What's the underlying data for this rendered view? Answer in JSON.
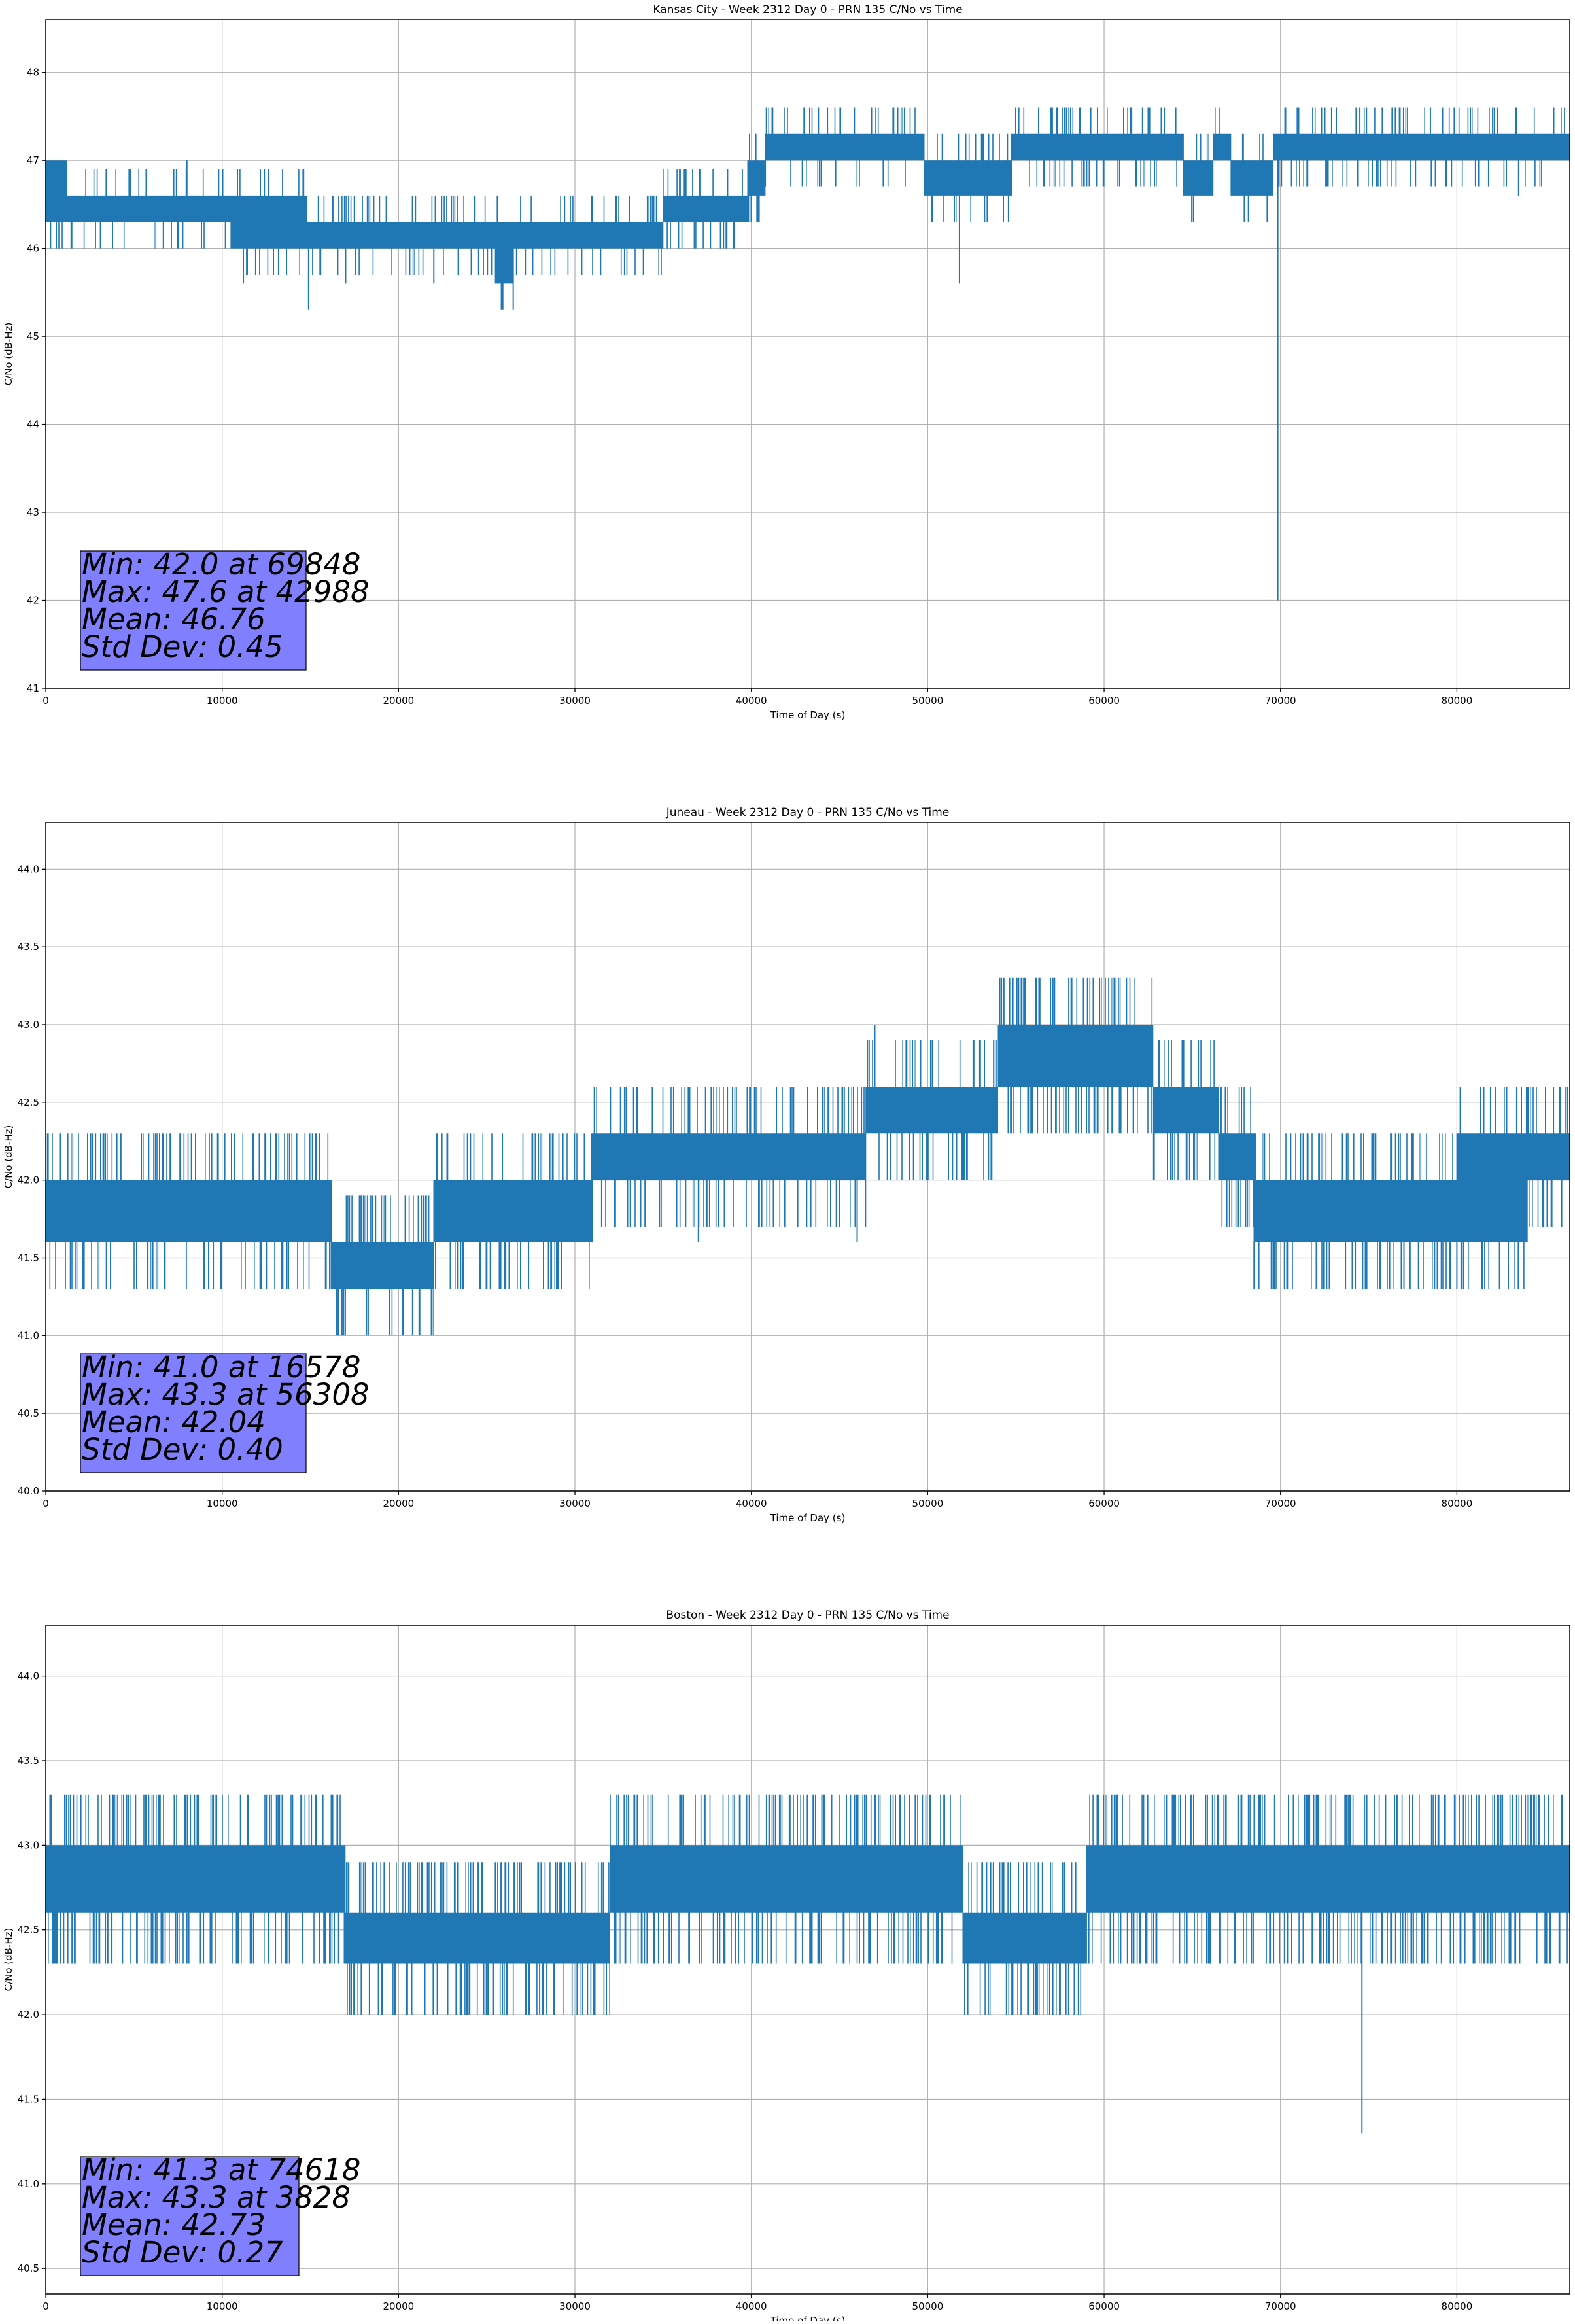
{
  "chart_data": [
    {
      "type": "line",
      "title": "Kansas City - Week 2312 Day 0 - PRN 135 C/No vs Time",
      "xlabel": "Time of Day (s)",
      "ylabel": "C/No (dB-Hz)",
      "xlim": [
        0,
        86400
      ],
      "ylim": [
        41,
        48.6
      ],
      "x_ticks": [
        0,
        10000,
        20000,
        30000,
        40000,
        50000,
        60000,
        70000,
        80000
      ],
      "y_ticks": [
        41,
        42,
        43,
        44,
        45,
        46,
        47,
        48
      ],
      "y_tick_labels": [
        "41",
        "42",
        "43",
        "44",
        "45",
        "46",
        "47",
        "48"
      ],
      "grid": true,
      "series_color": "#1f77b4",
      "stats_box_color": "#8080ff",
      "stats": [
        "Min: 42.0 at 69848",
        "Max: 47.6 at 42988",
        "Mean: 46.76",
        "Std Dev: 0.45"
      ],
      "quantum": 0.3,
      "dense_segments": [
        {
          "x0": 0,
          "x1": 1200,
          "lo": 46.3,
          "hi": 47.0
        },
        {
          "x0": 1200,
          "x1": 3000,
          "lo": 46.3,
          "hi": 46.6
        },
        {
          "x0": 3000,
          "x1": 5500,
          "lo": 46.3,
          "hi": 46.6
        },
        {
          "x0": 5500,
          "x1": 8000,
          "lo": 46.3,
          "hi": 46.6
        },
        {
          "x0": 8000,
          "x1": 10500,
          "lo": 46.3,
          "hi": 46.6
        },
        {
          "x0": 10500,
          "x1": 14800,
          "lo": 46.0,
          "hi": 46.6
        },
        {
          "x0": 14800,
          "x1": 25500,
          "lo": 46.0,
          "hi": 46.3
        },
        {
          "x0": 25500,
          "x1": 26500,
          "lo": 45.6,
          "hi": 46.3
        },
        {
          "x0": 26500,
          "x1": 31000,
          "lo": 46.0,
          "hi": 46.3
        },
        {
          "x0": 31000,
          "x1": 35000,
          "lo": 46.0,
          "hi": 46.3
        },
        {
          "x0": 35000,
          "x1": 39800,
          "lo": 46.3,
          "hi": 46.6
        },
        {
          "x0": 39800,
          "x1": 40800,
          "lo": 46.6,
          "hi": 47.0
        },
        {
          "x0": 40800,
          "x1": 46500,
          "lo": 47.0,
          "hi": 47.3
        },
        {
          "x0": 46500,
          "x1": 49800,
          "lo": 47.0,
          "hi": 47.3
        },
        {
          "x0": 49800,
          "x1": 54800,
          "lo": 46.6,
          "hi": 47.0
        },
        {
          "x0": 54800,
          "x1": 64500,
          "lo": 47.0,
          "hi": 47.3
        },
        {
          "x0": 64500,
          "x1": 66200,
          "lo": 46.6,
          "hi": 47.0
        },
        {
          "x0": 66200,
          "x1": 67200,
          "lo": 47.0,
          "hi": 47.3
        },
        {
          "x0": 67200,
          "x1": 69600,
          "lo": 46.6,
          "hi": 47.0
        },
        {
          "x0": 69600,
          "x1": 86400,
          "lo": 47.0,
          "hi": 47.3
        }
      ],
      "spikes": [
        [
          69848,
          42.0
        ],
        [
          51800,
          45.6
        ],
        [
          14900,
          45.3
        ],
        [
          26500,
          45.3
        ],
        [
          11200,
          45.6
        ],
        [
          17000,
          45.6
        ],
        [
          25500,
          45.6
        ],
        [
          22000,
          45.6
        ],
        [
          8000,
          47.0
        ],
        [
          42988,
          47.6
        ],
        [
          58600,
          47.6
        ],
        [
          61500,
          47.6
        ],
        [
          74500,
          47.6
        ],
        [
          78500,
          47.6
        ],
        [
          83500,
          46.6
        ]
      ],
      "jitter_density": 0.22
    },
    {
      "type": "line",
      "title": "Juneau - Week 2312 Day 0 - PRN 135 C/No vs Time",
      "xlabel": "Time of Day (s)",
      "ylabel": "C/No (dB-Hz)",
      "xlim": [
        0,
        86400
      ],
      "ylim": [
        40.0,
        44.3
      ],
      "x_ticks": [
        0,
        10000,
        20000,
        30000,
        40000,
        50000,
        60000,
        70000,
        80000
      ],
      "y_ticks": [
        40.0,
        40.5,
        41.0,
        41.5,
        42.0,
        42.5,
        43.0,
        43.5,
        44.0
      ],
      "y_tick_labels": [
        "40.0",
        "40.5",
        "41.0",
        "41.5",
        "42.0",
        "42.5",
        "43.0",
        "43.5",
        "44.0"
      ],
      "grid": true,
      "series_color": "#1f77b4",
      "stats_box_color": "#8080ff",
      "stats": [
        "Min: 41.0 at 16578",
        "Max: 43.3 at 56308",
        "Mean: 42.04",
        "Std Dev: 0.40"
      ],
      "quantum": 0.3,
      "dense_segments": [
        {
          "x0": 0,
          "x1": 16200,
          "lo": 41.6,
          "hi": 42.0
        },
        {
          "x0": 16200,
          "x1": 22000,
          "lo": 41.3,
          "hi": 41.6
        },
        {
          "x0": 22000,
          "x1": 31000,
          "lo": 41.6,
          "hi": 42.0
        },
        {
          "x0": 31000,
          "x1": 38000,
          "lo": 42.0,
          "hi": 42.3
        },
        {
          "x0": 38000,
          "x1": 46500,
          "lo": 42.0,
          "hi": 42.3
        },
        {
          "x0": 46500,
          "x1": 54000,
          "lo": 42.3,
          "hi": 42.6
        },
        {
          "x0": 54000,
          "x1": 62800,
          "lo": 42.6,
          "hi": 43.0
        },
        {
          "x0": 62800,
          "x1": 66500,
          "lo": 42.3,
          "hi": 42.6
        },
        {
          "x0": 66500,
          "x1": 68500,
          "lo": 42.0,
          "hi": 42.3
        },
        {
          "x0": 68500,
          "x1": 80000,
          "lo": 41.6,
          "hi": 42.0
        },
        {
          "x0": 80000,
          "x1": 84000,
          "lo": 41.6,
          "hi": 42.3
        },
        {
          "x0": 84000,
          "x1": 86400,
          "lo": 42.0,
          "hi": 42.3
        }
      ],
      "spikes": [
        [
          16578,
          41.0
        ],
        [
          19500,
          41.0
        ],
        [
          56308,
          43.3
        ],
        [
          58000,
          43.3
        ],
        [
          60500,
          43.3
        ],
        [
          47000,
          43.0
        ],
        [
          28500,
          41.3
        ],
        [
          37000,
          41.6
        ],
        [
          46000,
          41.6
        ],
        [
          68500,
          41.3
        ],
        [
          77000,
          41.3
        ],
        [
          80000,
          41.3
        ]
      ],
      "jitter_density": 0.35
    },
    {
      "type": "line",
      "title": "Boston - Week 2312 Day 0 - PRN 135 C/No vs Time",
      "xlabel": "Time of Day (s)",
      "ylabel": "C/No (dB-Hz)",
      "xlim": [
        0,
        86400
      ],
      "ylim": [
        40.35,
        44.3
      ],
      "x_ticks": [
        0,
        10000,
        20000,
        30000,
        40000,
        50000,
        60000,
        70000,
        80000
      ],
      "y_ticks": [
        40.5,
        41.0,
        41.5,
        42.0,
        42.5,
        43.0,
        43.5,
        44.0
      ],
      "y_tick_labels": [
        "40.5",
        "41.0",
        "41.5",
        "42.0",
        "42.5",
        "43.0",
        "43.5",
        "44.0"
      ],
      "grid": true,
      "series_color": "#1f77b4",
      "stats_box_color": "#8080ff",
      "stats": [
        "Min: 41.3 at 74618",
        "Max: 43.3 at 3828",
        "Mean: 42.73",
        "Std Dev: 0.27"
      ],
      "quantum": 0.3,
      "dense_segments": [
        {
          "x0": 0,
          "x1": 17000,
          "lo": 42.6,
          "hi": 43.0
        },
        {
          "x0": 17000,
          "x1": 32000,
          "lo": 42.3,
          "hi": 42.6
        },
        {
          "x0": 32000,
          "x1": 52000,
          "lo": 42.6,
          "hi": 43.0
        },
        {
          "x0": 52000,
          "x1": 59000,
          "lo": 42.3,
          "hi": 42.6
        },
        {
          "x0": 59000,
          "x1": 86400,
          "lo": 42.6,
          "hi": 43.0
        }
      ],
      "spikes": [
        [
          74618,
          41.3
        ],
        [
          3828,
          43.3
        ],
        [
          44000,
          43.3
        ],
        [
          47000,
          43.3
        ],
        [
          20500,
          42.0
        ],
        [
          23500,
          42.0
        ],
        [
          28000,
          42.0
        ],
        [
          56000,
          42.0
        ],
        [
          1500,
          42.3
        ],
        [
          8000,
          42.3
        ],
        [
          38500,
          42.3
        ],
        [
          85000,
          42.3
        ]
      ],
      "jitter_density": 0.4
    }
  ]
}
